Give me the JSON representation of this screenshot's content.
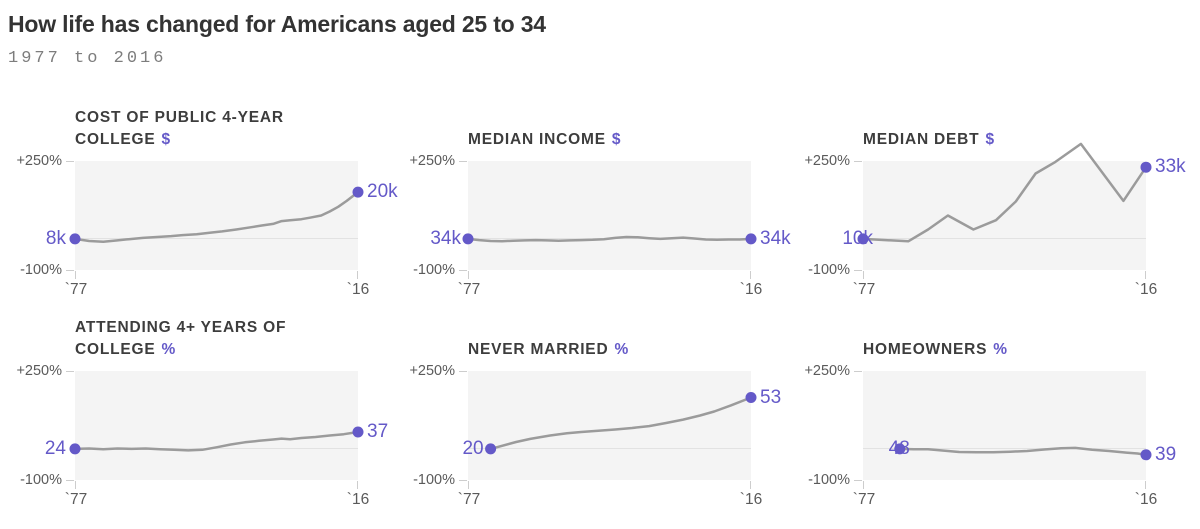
{
  "page": {
    "title": "How life has changed for Americans aged 25 to 34",
    "subtitle": "1977 to 2016"
  },
  "colors": {
    "accent": "#6459c8",
    "line": "#9b9b9b",
    "plot_bg": "#f4f4f4",
    "baseline": "#e2e2e2",
    "tick": "#cdcdcd",
    "title_text": "#333333",
    "subtitle_text": "#7d7d7d",
    "chart_title_text": "#3d3d3d",
    "axis_text": "#5a5a5a"
  },
  "axis": {
    "y_top_label": "+250%",
    "y_bottom_label": "-100%",
    "x_start_label": "`77",
    "x_end_label": "`16",
    "ylim_pct": [
      -100,
      250
    ],
    "x_range_years": [
      1977,
      2016
    ],
    "grid": "zero-baseline only"
  },
  "chart_data": [
    {
      "type": "line",
      "title": "COST OF PUBLIC 4-YEAR COLLEGE",
      "unit_suffix": "$",
      "start_label": "8k",
      "end_label": "20k",
      "y_meaning": "percent change since start year",
      "points": [
        [
          0,
          0
        ],
        [
          0.05,
          -7
        ],
        [
          0.1,
          -9
        ],
        [
          0.15,
          -5
        ],
        [
          0.19,
          -1
        ],
        [
          0.24,
          3
        ],
        [
          0.29,
          6
        ],
        [
          0.34,
          9
        ],
        [
          0.38,
          12
        ],
        [
          0.43,
          15
        ],
        [
          0.48,
          20
        ],
        [
          0.52,
          24
        ],
        [
          0.57,
          30
        ],
        [
          0.62,
          37
        ],
        [
          0.66,
          43
        ],
        [
          0.7,
          48
        ],
        [
          0.73,
          57
        ],
        [
          0.76,
          60
        ],
        [
          0.8,
          63
        ],
        [
          0.83,
          68
        ],
        [
          0.87,
          75
        ],
        [
          0.9,
          88
        ],
        [
          0.93,
          103
        ],
        [
          0.96,
          122
        ],
        [
          1,
          150
        ]
      ]
    },
    {
      "type": "line",
      "title": "MEDIAN INCOME",
      "unit_suffix": "$",
      "start_label": "34k",
      "end_label": "34k",
      "y_meaning": "percent change since start year",
      "points": [
        [
          0,
          0
        ],
        [
          0.04,
          -4
        ],
        [
          0.08,
          -7
        ],
        [
          0.12,
          -8
        ],
        [
          0.16,
          -6
        ],
        [
          0.2,
          -5
        ],
        [
          0.24,
          -4
        ],
        [
          0.28,
          -5
        ],
        [
          0.32,
          -6
        ],
        [
          0.36,
          -5
        ],
        [
          0.4,
          -4
        ],
        [
          0.44,
          -3
        ],
        [
          0.48,
          -1
        ],
        [
          0.52,
          3
        ],
        [
          0.56,
          6
        ],
        [
          0.6,
          5
        ],
        [
          0.64,
          2
        ],
        [
          0.68,
          0
        ],
        [
          0.72,
          2
        ],
        [
          0.76,
          4
        ],
        [
          0.8,
          1
        ],
        [
          0.84,
          -2
        ],
        [
          0.88,
          -3
        ],
        [
          0.92,
          -2
        ],
        [
          0.96,
          -2
        ],
        [
          1,
          0
        ]
      ]
    },
    {
      "type": "line",
      "title": "MEDIAN DEBT",
      "unit_suffix": "$",
      "start_label": "10k",
      "end_label": "33k",
      "y_meaning": "percent change since start year",
      "points": [
        [
          0,
          0
        ],
        [
          0.08,
          -4
        ],
        [
          0.16,
          -8
        ],
        [
          0.23,
          30
        ],
        [
          0.3,
          75
        ],
        [
          0.39,
          30
        ],
        [
          0.47,
          60
        ],
        [
          0.54,
          120
        ],
        [
          0.61,
          210
        ],
        [
          0.68,
          247
        ],
        [
          0.77,
          305
        ],
        [
          0.92,
          122
        ],
        [
          1,
          230
        ]
      ]
    },
    {
      "type": "line",
      "title": "ATTENDING 4+ YEARS OF COLLEGE",
      "unit_suffix": "%",
      "start_label": "24",
      "end_label": "37",
      "y_meaning": "percent change since start year",
      "points": [
        [
          0,
          0
        ],
        [
          0.05,
          1
        ],
        [
          0.1,
          -1
        ],
        [
          0.15,
          1
        ],
        [
          0.2,
          0
        ],
        [
          0.25,
          1
        ],
        [
          0.3,
          -1
        ],
        [
          0.35,
          -3
        ],
        [
          0.4,
          -5
        ],
        [
          0.45,
          -3
        ],
        [
          0.5,
          5
        ],
        [
          0.55,
          14
        ],
        [
          0.6,
          21
        ],
        [
          0.65,
          26
        ],
        [
          0.7,
          30
        ],
        [
          0.73,
          33
        ],
        [
          0.76,
          31
        ],
        [
          0.8,
          35
        ],
        [
          0.85,
          38
        ],
        [
          0.9,
          43
        ],
        [
          0.95,
          47
        ],
        [
          1,
          54
        ]
      ]
    },
    {
      "type": "line",
      "title": "NEVER MARRIED",
      "unit_suffix": "%",
      "start_label": "20",
      "end_label": "53",
      "y_meaning": "percent change since start year",
      "points": [
        [
          0.08,
          0
        ],
        [
          0.17,
          22
        ],
        [
          0.22,
          32
        ],
        [
          0.29,
          43
        ],
        [
          0.35,
          50
        ],
        [
          0.4,
          54
        ],
        [
          0.46,
          58
        ],
        [
          0.52,
          62
        ],
        [
          0.58,
          67
        ],
        [
          0.64,
          73
        ],
        [
          0.7,
          83
        ],
        [
          0.76,
          94
        ],
        [
          0.82,
          107
        ],
        [
          0.87,
          120
        ],
        [
          0.93,
          140
        ],
        [
          1,
          165
        ]
      ]
    },
    {
      "type": "line",
      "title": "HOMEOWNERS",
      "unit_suffix": "%",
      "start_label": "48",
      "end_label": "39",
      "y_meaning": "percent change since start year",
      "points": [
        [
          0.13,
          0
        ],
        [
          0.18,
          -1
        ],
        [
          0.23,
          -1
        ],
        [
          0.29,
          -6
        ],
        [
          0.34,
          -10
        ],
        [
          0.4,
          -11
        ],
        [
          0.46,
          -11
        ],
        [
          0.52,
          -9
        ],
        [
          0.58,
          -7
        ],
        [
          0.64,
          -2
        ],
        [
          0.7,
          2
        ],
        [
          0.75,
          3
        ],
        [
          0.81,
          -3
        ],
        [
          0.87,
          -7
        ],
        [
          0.93,
          -12
        ],
        [
          0.97,
          -15
        ],
        [
          1,
          -19
        ]
      ]
    }
  ]
}
